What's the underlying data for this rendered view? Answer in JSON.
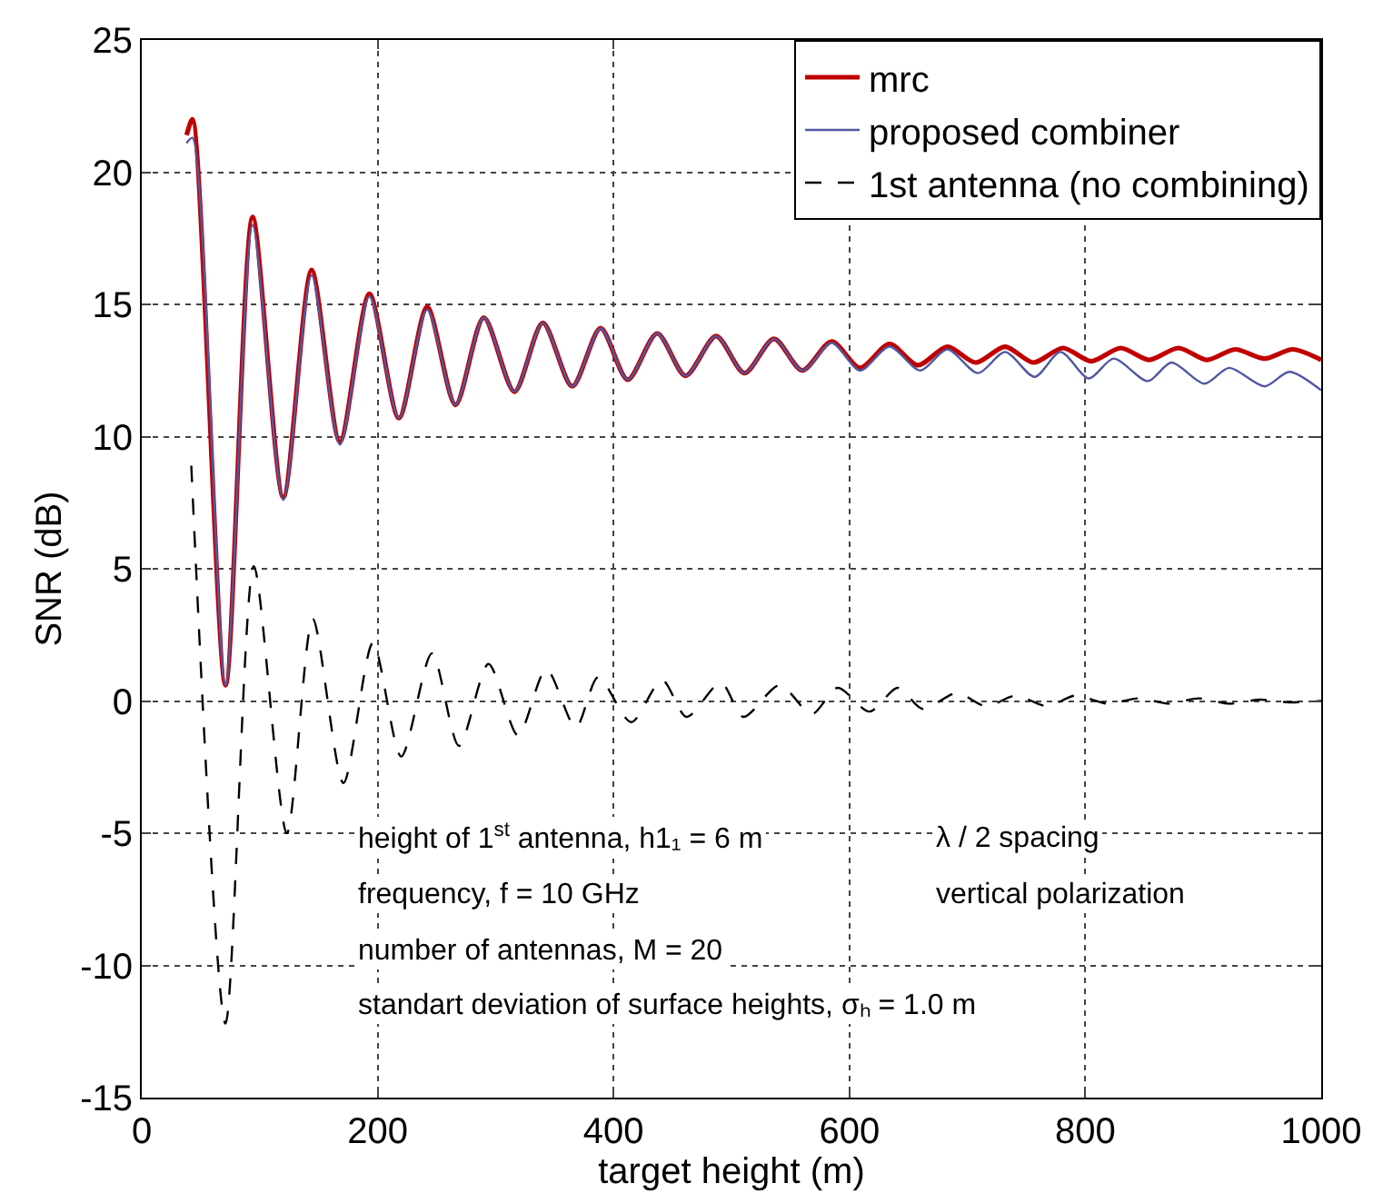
{
  "chart_data": {
    "type": "line",
    "xlabel": "target height (m)",
    "ylabel": "SNR (dB)",
    "xlim": [
      0,
      1000
    ],
    "xticks": [
      0,
      200,
      400,
      600,
      800,
      1000
    ],
    "ylim": [
      -15,
      25
    ],
    "yticks": [
      -15,
      -10,
      -5,
      0,
      5,
      10,
      15,
      20,
      25
    ],
    "grid": true,
    "legend": "top right",
    "series": [
      {
        "name": "mrc",
        "color": "#c00000",
        "line_style": "solid",
        "x": [
          38,
          43,
          71,
          94,
          120,
          144,
          168,
          193,
          218,
          242,
          266,
          290,
          316,
          340,
          365,
          389,
          412,
          437,
          461,
          487,
          511,
          536,
          560,
          585,
          609,
          634,
          658,
          683,
          707,
          732,
          756,
          781,
          805,
          830,
          854,
          879,
          903,
          927,
          952,
          976,
          1000
        ],
        "values": [
          21.4,
          22.0,
          0.6,
          18.3,
          7.7,
          16.3,
          9.8,
          15.4,
          10.7,
          14.9,
          11.2,
          14.5,
          11.7,
          14.3,
          11.9,
          14.1,
          12.15,
          13.9,
          12.3,
          13.8,
          12.4,
          13.7,
          12.5,
          13.6,
          12.6,
          13.5,
          12.7,
          13.4,
          12.8,
          13.4,
          12.8,
          13.35,
          12.85,
          13.35,
          12.9,
          13.35,
          12.9,
          13.3,
          12.95,
          13.3,
          12.9
        ]
      },
      {
        "name": "proposed combiner",
        "color": "#5058a0",
        "line_style": "solid",
        "x": [
          38,
          43,
          71,
          94,
          120,
          144,
          168,
          193,
          218,
          242,
          266,
          290,
          316,
          340,
          365,
          389,
          412,
          437,
          461,
          487,
          511,
          536,
          560,
          585,
          609,
          634,
          660,
          683,
          709,
          732,
          757,
          779,
          803,
          824,
          853,
          873,
          901,
          922,
          952,
          973,
          1000
        ],
        "values": [
          21.1,
          21.3,
          0.6,
          18.0,
          7.6,
          16.1,
          9.7,
          15.3,
          10.7,
          14.8,
          11.2,
          14.5,
          11.7,
          14.3,
          11.9,
          14.1,
          12.15,
          13.9,
          12.3,
          13.8,
          12.4,
          13.7,
          12.5,
          13.55,
          12.5,
          13.4,
          12.5,
          13.3,
          12.4,
          13.2,
          12.26,
          13.2,
          12.2,
          12.95,
          12.1,
          12.8,
          12.0,
          12.6,
          11.9,
          12.45,
          11.75
        ]
      },
      {
        "name": "1st antenna (no combining)",
        "color": "#000000",
        "line_style": "dashed",
        "x": [
          42,
          71,
          95,
          123,
          145,
          171,
          196,
          220,
          246,
          269,
          294,
          319,
          343,
          368,
          387,
          415,
          441,
          462,
          491,
          510,
          541,
          568,
          590,
          617,
          641,
          662,
          691,
          716,
          741,
          768,
          791,
          819,
          845,
          871,
          896,
          922,
          948,
          973,
          1000
        ],
        "values": [
          8.9,
          -12.2,
          5.1,
          -5.0,
          3.1,
          -3.1,
          2.2,
          -2.1,
          1.8,
          -1.7,
          1.4,
          -1.3,
          1.2,
          -1.0,
          0.9,
          -0.8,
          0.8,
          -0.6,
          0.7,
          -0.6,
          0.6,
          -0.5,
          0.5,
          -0.4,
          0.5,
          -0.3,
          0.3,
          -0.2,
          0.2,
          -0.2,
          0.2,
          -0.1,
          0.1,
          -0.1,
          0.1,
          -0.1,
          0.05,
          -0.05,
          0
        ]
      }
    ],
    "annotations": [
      "height of 1$^{st}$ antenna, h1₁ = 6 m",
      "frequency, f = 10 GHz",
      "number of antennas, M = 20",
      "standart deviation of surface heights, σₕ = 1.0 m",
      "λ / 2 spacing",
      "vertical polarization"
    ]
  }
}
